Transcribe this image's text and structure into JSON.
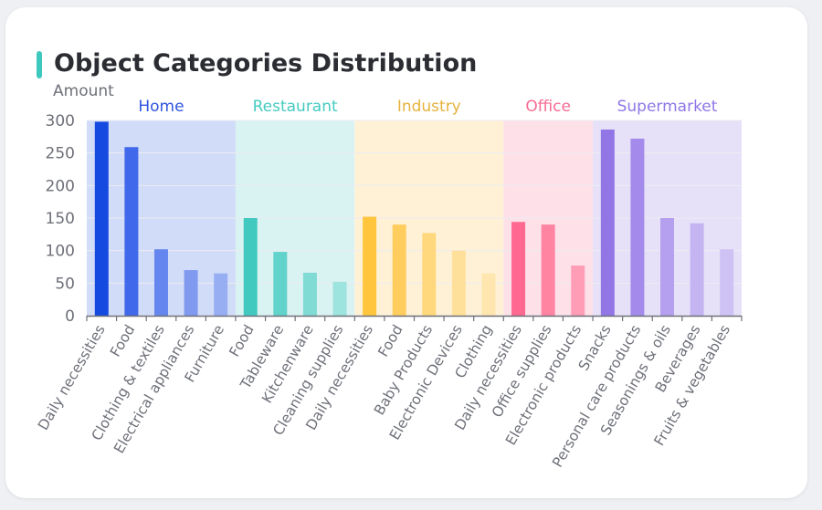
{
  "title": "Object Categories Distribution",
  "accent_color": "#3ec8be",
  "chart_data": {
    "type": "bar",
    "ylabel": "Amount",
    "ylim": [
      0,
      300
    ],
    "yticks": [
      0,
      50,
      100,
      150,
      200,
      250,
      300
    ],
    "legend": "none",
    "groups": [
      {
        "name": "Home",
        "color": "#2f55e0",
        "bg": "#d1dcf8",
        "bars": [
          "#144ae0",
          "#4068ea",
          "#6586ee",
          "#809af0",
          "#98aef2"
        ],
        "categories": [
          "Daily necessities",
          "Food",
          "Clothing & textiles",
          "Electrical appliances",
          "Furniture"
        ],
        "values": [
          298,
          259,
          102,
          70,
          65
        ]
      },
      {
        "name": "Restaurant",
        "color": "#45cbc0",
        "bg": "#d9f2f2",
        "bars": [
          "#42c9bf",
          "#62d3ca",
          "#80dbd4",
          "#9de3de"
        ],
        "categories": [
          "Food",
          "Tableware",
          "Kitchenware",
          "Cleaning supplies"
        ],
        "values": [
          150,
          98,
          66,
          52
        ]
      },
      {
        "name": "Industry",
        "color": "#e6b23c",
        "bg": "#fff1d6",
        "bars": [
          "#ffc53d",
          "#ffcd5e",
          "#ffd87e",
          "#ffe09a",
          "#ffe6ae"
        ],
        "categories": [
          "Daily necessities",
          "Food",
          "Baby Products",
          "Electronic Devices",
          "Clothing"
        ],
        "values": [
          152,
          140,
          127,
          100,
          65
        ]
      },
      {
        "name": "Office",
        "color": "#f76b92",
        "bg": "#fde0e8",
        "bars": [
          "#ff6890",
          "#ff84a2",
          "#ff9db6"
        ],
        "categories": [
          "Daily necessities",
          "Office supplies",
          "Electronic products"
        ],
        "values": [
          144,
          140,
          77
        ]
      },
      {
        "name": "Supermarket",
        "color": "#8f77e6",
        "bg": "#e6e1f8",
        "bars": [
          "#9276e6",
          "#a48aea",
          "#b4a0ee",
          "#c4b4f2",
          "#cec2f4"
        ],
        "categories": [
          "Snacks",
          "Personal care products",
          "Seasonings & oils",
          "Beverages",
          "Fruits & vegetables"
        ],
        "values": [
          286,
          272,
          150,
          142,
          102
        ]
      }
    ]
  }
}
